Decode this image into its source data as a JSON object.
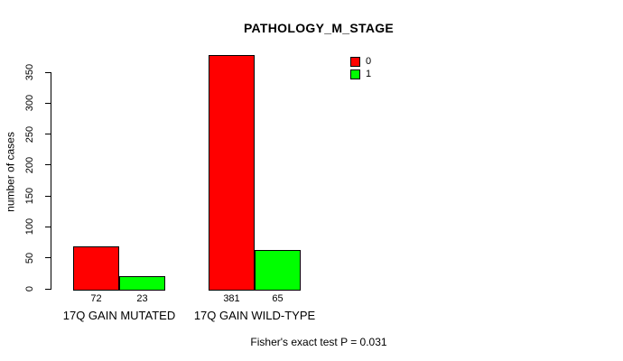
{
  "chart_data": {
    "type": "bar",
    "title": "PATHOLOGY_M_STAGE",
    "xlabel": "",
    "ylabel": "number of cases",
    "categories": [
      "17Q GAIN MUTATED",
      "17Q GAIN WILD-TYPE"
    ],
    "series": [
      {
        "name": "0",
        "color": "#FF0000",
        "values": [
          72,
          381
        ]
      },
      {
        "name": "1",
        "color": "#00FF00",
        "values": [
          23,
          65
        ]
      }
    ],
    "bar_value_labels": [
      [
        "72",
        "381"
      ],
      [
        "23",
        "65"
      ]
    ],
    "ylim": [
      0,
      381
    ],
    "yticks": [
      0,
      50,
      100,
      150,
      200,
      250,
      300,
      350
    ],
    "grid": "off",
    "legend_position": "top-right",
    "legend_entries": [
      "0",
      "1"
    ],
    "annotation": "Fisher's exact test P = 0.031",
    "bar_border_color": "#000000",
    "background_color": "#FFFFFF"
  }
}
